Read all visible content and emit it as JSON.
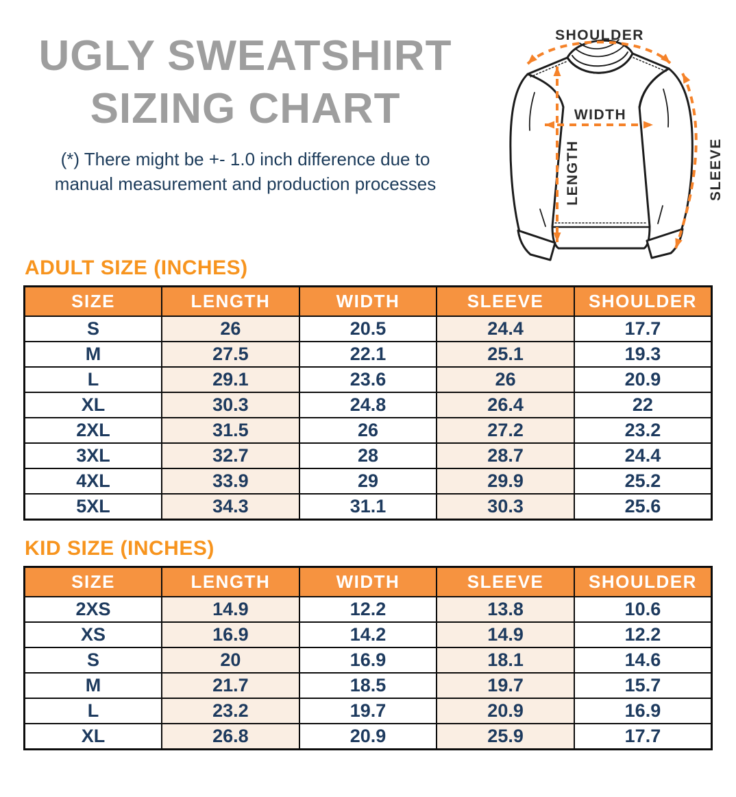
{
  "title": {
    "line1": "UGLY SWEATSHIRT",
    "line2": "SIZING CHART"
  },
  "note": {
    "line1": "(*) There might be +- 1.0 inch difference due to",
    "line2": "manual measurement and production processes"
  },
  "diagram": {
    "labels": {
      "shoulder": "SHOULDER",
      "width": "WIDTH",
      "length": "LENGTH",
      "sleeve": "SLEEVE"
    }
  },
  "colors": {
    "title_gray": "#9E9E9E",
    "note_navy": "#1C3B5A",
    "heading_orange": "#F7941E",
    "table_header_orange": "#F69340",
    "arrow_orange": "#F58229",
    "cell_peach": "#FAEEE3",
    "cell_text_navy": "#1D3A5E",
    "border_black": "#0C0C0C"
  },
  "chart_data": [
    {
      "type": "table",
      "title": "ADULT SIZE (INCHES)",
      "columns": [
        "SIZE",
        "LENGTH",
        "WIDTH",
        "SLEEVE",
        "SHOULDER"
      ],
      "rows": [
        [
          "S",
          "26",
          "20.5",
          "24.4",
          "17.7"
        ],
        [
          "M",
          "27.5",
          "22.1",
          "25.1",
          "19.3"
        ],
        [
          "L",
          "29.1",
          "23.6",
          "26",
          "20.9"
        ],
        [
          "XL",
          "30.3",
          "24.8",
          "26.4",
          "22"
        ],
        [
          "2XL",
          "31.5",
          "26",
          "27.2",
          "23.2"
        ],
        [
          "3XL",
          "32.7",
          "28",
          "28.7",
          "24.4"
        ],
        [
          "4XL",
          "33.9",
          "29",
          "29.9",
          "25.2"
        ],
        [
          "5XL",
          "34.3",
          "31.1",
          "30.3",
          "25.6"
        ]
      ]
    },
    {
      "type": "table",
      "title": "KID SIZE (INCHES)",
      "columns": [
        "SIZE",
        "LENGTH",
        "WIDTH",
        "SLEEVE",
        "SHOULDER"
      ],
      "rows": [
        [
          "2XS",
          "14.9",
          "12.2",
          "13.8",
          "10.6"
        ],
        [
          "XS",
          "16.9",
          "14.2",
          "14.9",
          "12.2"
        ],
        [
          "S",
          "20",
          "16.9",
          "18.1",
          "14.6"
        ],
        [
          "M",
          "21.7",
          "18.5",
          "19.7",
          "15.7"
        ],
        [
          "L",
          "23.2",
          "19.7",
          "20.9",
          "16.9"
        ],
        [
          "XL",
          "26.8",
          "20.9",
          "25.9",
          "17.7"
        ]
      ]
    }
  ]
}
